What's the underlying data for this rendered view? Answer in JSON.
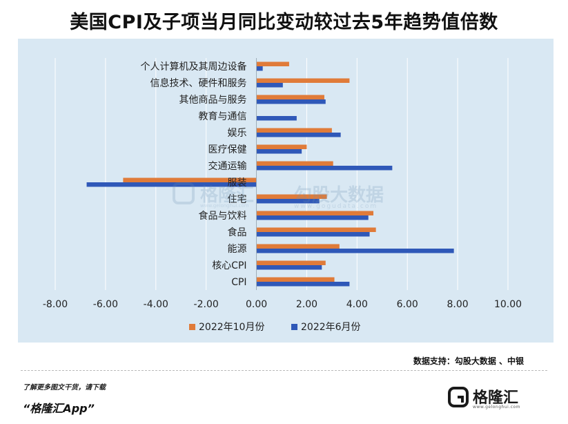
{
  "header": {
    "title": "美国CPI及子项当月同比变动较过去5年趋势值倍数"
  },
  "chart_data": {
    "type": "bar",
    "orientation": "horizontal",
    "title": "美国CPI及子项当月同比变动较过去5年趋势值倍数",
    "categories": [
      "个人计算机及其周边设备",
      "信息技术、硬件和服务",
      "其他商品与服务",
      "教育与通信",
      "娱乐",
      "医疗保健",
      "交通运输",
      "服装",
      "住宅",
      "食品与饮料",
      "食品",
      "能源",
      "核心CPI",
      "CPI"
    ],
    "series": [
      {
        "name": "2022年10月份",
        "color": "#e07b39",
        "values": [
          1.3,
          3.7,
          2.7,
          0.0,
          3.0,
          2.0,
          3.05,
          -5.3,
          2.8,
          4.65,
          4.75,
          3.3,
          2.75,
          3.1
        ]
      },
      {
        "name": "2022年6月份",
        "color": "#2f58b8",
        "values": [
          0.25,
          1.05,
          2.75,
          1.6,
          3.35,
          1.8,
          5.4,
          -6.75,
          2.5,
          4.45,
          4.5,
          7.85,
          2.6,
          3.7
        ]
      }
    ],
    "xlim": [
      -8,
      10
    ],
    "xticks": [
      "-8.00",
      "-6.00",
      "-4.00",
      "-2.00",
      "0.00",
      "2.00",
      "4.00",
      "6.00",
      "8.00",
      "10.00"
    ],
    "xtick_values": [
      -8,
      -6,
      -4,
      -2,
      0,
      2,
      4,
      6,
      8,
      10
    ],
    "grid": "vertical",
    "legend": "bottom-center"
  },
  "watermark": {
    "logo_text": "格隆汇",
    "logo_url": "www.gelonghui.com",
    "data_text": "勾股大数据",
    "data_url": "www.gogudata.com"
  },
  "footer": {
    "source": "数据支持：勾股大数据 、中银",
    "promo": "了解更多图文干货，请下载",
    "app_name": "“格隆汇App”",
    "brand_name": "格隆汇",
    "brand_url": "www.gelonghui.com"
  },
  "colors": {
    "background": "#d9e8f3",
    "grid": "#ffffff",
    "axis": "#9aa9b6"
  }
}
